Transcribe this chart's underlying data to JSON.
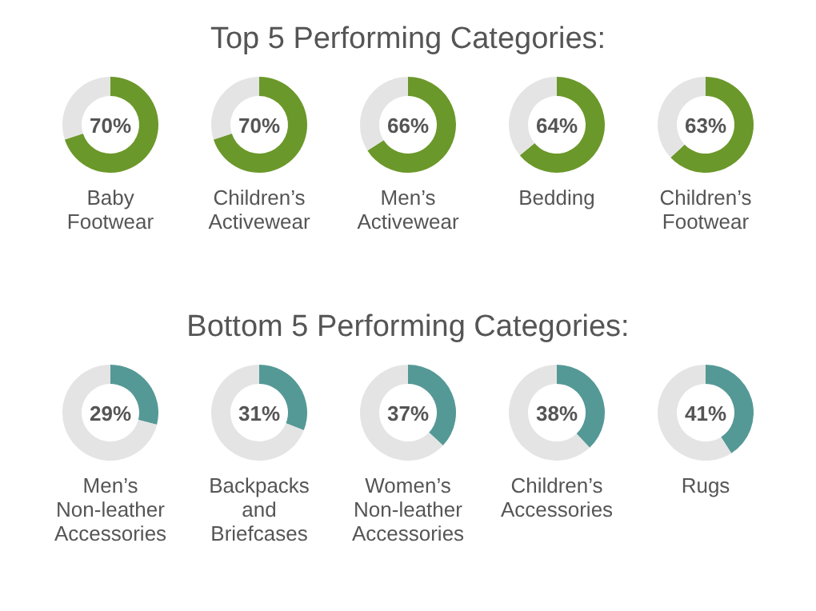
{
  "chart_data": [
    {
      "type": "other",
      "title": "Top 5 Performing Categories:"
    },
    {
      "type": "donut",
      "title": "Baby Footwear",
      "categories": [
        null,
        null
      ],
      "values": [
        70,
        30
      ],
      "colors": [
        "#6b982a",
        "#e4e4e4"
      ],
      "annotations": [
        "70%"
      ]
    },
    {
      "type": "donut",
      "title": "Children’s Activewear",
      "categories": [
        null,
        null
      ],
      "values": [
        70,
        30
      ],
      "colors": [
        "#6b982a",
        "#e4e4e4"
      ],
      "annotations": [
        "70%"
      ]
    },
    {
      "type": "donut",
      "title": "Men’s Activewear",
      "categories": [
        null,
        null
      ],
      "values": [
        66,
        34
      ],
      "colors": [
        "#6b982a",
        "#e4e4e4"
      ],
      "annotations": [
        "66%"
      ]
    },
    {
      "type": "donut",
      "title": "Bedding",
      "categories": [
        null,
        null
      ],
      "values": [
        64,
        36
      ],
      "colors": [
        "#6b982a",
        "#e4e4e4"
      ],
      "annotations": [
        "64%"
      ]
    },
    {
      "type": "donut",
      "title": "Children’s Footwear",
      "categories": [
        null,
        null
      ],
      "values": [
        63,
        37
      ],
      "colors": [
        "#6b982a",
        "#e4e4e4"
      ],
      "annotations": [
        "63%"
      ]
    },
    {
      "type": "other",
      "title": "Bottom 5 Performing Categories:"
    },
    {
      "type": "donut",
      "title": "Men’s Non-leather Accessories",
      "categories": [
        null,
        null
      ],
      "values": [
        29,
        71
      ],
      "colors": [
        "#559996",
        "#e4e4e4"
      ],
      "annotations": [
        "29%"
      ]
    },
    {
      "type": "donut",
      "title": "Backpacks and Briefcases",
      "categories": [
        null,
        null
      ],
      "values": [
        31,
        69
      ],
      "colors": [
        "#559996",
        "#e4e4e4"
      ],
      "annotations": [
        "31%"
      ]
    },
    {
      "type": "donut",
      "title": "Women’s Non-leather Accessories",
      "categories": [
        null,
        null
      ],
      "values": [
        37,
        63
      ],
      "colors": [
        "#559996",
        "#e4e4e4"
      ],
      "annotations": [
        "37%"
      ]
    },
    {
      "type": "donut",
      "title": "Children’s Accessories",
      "categories": [
        null,
        null
      ],
      "values": [
        38,
        62
      ],
      "colors": [
        "#559996",
        "#e4e4e4"
      ],
      "annotations": [
        "38%"
      ]
    },
    {
      "type": "donut",
      "title": "Rugs",
      "categories": [
        null,
        null
      ],
      "values": [
        41,
        59
      ],
      "colors": [
        "#559996",
        "#e4e4e4"
      ],
      "annotations": [
        "41%"
      ]
    }
  ]
}
